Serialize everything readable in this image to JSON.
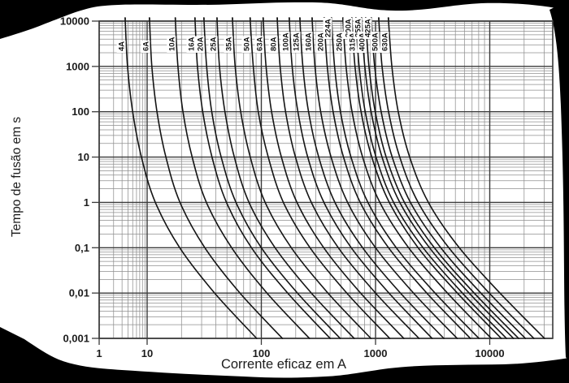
{
  "chart_data": {
    "type": "line",
    "title": "",
    "xlabel": "Corrente eficaz em A",
    "ylabel": "Tempo de fusão em s",
    "x_scale": "log",
    "y_scale": "log",
    "xlim": [
      1,
      35000
    ],
    "ylim": [
      0.001,
      10000
    ],
    "grid": "log major+minor, both axes",
    "legend_position": "labels-on-curves-top",
    "x_tick_values": [
      1,
      10,
      100,
      1000,
      10000
    ],
    "x_tick_labels": [
      "1",
      "10",
      "100",
      "1000",
      "10000"
    ],
    "y_tick_values": [
      10000,
      1000,
      100,
      10,
      1,
      0.1,
      0.01,
      0.001
    ],
    "y_tick_labels": [
      "10000",
      "1000",
      "100",
      "10",
      "1",
      "0,1",
      "0,01",
      "0,001"
    ],
    "times_s": [
      10000,
      1000,
      100,
      10,
      1,
      0.1,
      0.01,
      0.001
    ],
    "series": [
      {
        "name": "4A",
        "label_raised": false,
        "currents_A": [
          3.5,
          3.9,
          5.0,
          7.6,
          11.8,
          19.3,
          39,
          91
        ]
      },
      {
        "name": "6A",
        "label_raised": false,
        "currents_A": [
          10.5,
          11.0,
          12.2,
          14.6,
          19.4,
          32,
          65,
          153
        ]
      },
      {
        "name": "10A",
        "label_raised": false,
        "currents_A": [
          17.7,
          18.6,
          20.6,
          24.8,
          33,
          55,
          112,
          264
        ]
      },
      {
        "name": "16A",
        "label_raised": false,
        "currents_A": [
          26.3,
          27.6,
          30.7,
          37,
          49.5,
          82,
          170,
          400
        ]
      },
      {
        "name": "20A",
        "label_raised": false,
        "currents_A": [
          31.5,
          33.2,
          36.8,
          44.5,
          60,
          100,
          207,
          490
        ]
      },
      {
        "name": "25A",
        "label_raised": false,
        "currents_A": [
          41,
          43,
          48,
          58,
          78,
          132,
          274,
          650
        ]
      },
      {
        "name": "35A",
        "label_raised": false,
        "currents_A": [
          56,
          59,
          66,
          80,
          108,
          183,
          383,
          910
        ]
      },
      {
        "name": "50A",
        "label_raised": false,
        "currents_A": [
          80,
          85,
          94,
          115,
          156,
          267,
          560,
          1330
        ]
      },
      {
        "name": "63A",
        "label_raised": false,
        "currents_A": [
          104,
          110,
          123,
          150,
          205,
          352,
          740,
          1770
        ]
      },
      {
        "name": "80A",
        "label_raised": false,
        "currents_A": [
          138,
          146,
          163,
          199,
          274,
          472,
          1000,
          2400
        ]
      },
      {
        "name": "100A",
        "label_raised": false,
        "currents_A": [
          176,
          186,
          209,
          255,
          353,
          613,
          1310,
          3130
        ]
      },
      {
        "name": "125A",
        "label_raised": false,
        "currents_A": [
          218,
          231,
          259,
          318,
          441,
          770,
          1650,
          3960
        ]
      },
      {
        "name": "160A",
        "label_raised": false,
        "currents_A": [
          279,
          295,
          331,
          408,
          569,
          1000,
          2150,
          5180
        ]
      },
      {
        "name": "200A",
        "label_raised": false,
        "currents_A": [
          356,
          378,
          425,
          524,
          734,
          1300,
          2810,
          6770
        ]
      },
      {
        "name": "224A",
        "label_raised": true,
        "currents_A": [
          413,
          438,
          493,
          610,
          857,
          1520,
          3320,
          8030
        ]
      },
      {
        "name": "250A",
        "label_raised": false,
        "currents_A": [
          519,
          552,
          623,
          771,
          1090,
          1950,
          4260,
          10300
        ]
      },
      {
        "name": "300A",
        "label_raised": true,
        "currents_A": [
          622,
          661,
          747,
          927,
          1320,
          2360,
          5200,
          12600
        ]
      },
      {
        "name": "315A",
        "label_raised": false,
        "currents_A": [
          675,
          718,
          812,
          1010,
          1440,
          2610,
          5760,
          14000
        ]
      },
      {
        "name": "355A",
        "label_raised": true,
        "currents_A": [
          757,
          805,
          914,
          1140,
          1630,
          2970,
          6590,
          16100
        ]
      },
      {
        "name": "400A",
        "label_raised": false,
        "currents_A": [
          822,
          876,
          994,
          1240,
          1790,
          3270,
          7300,
          17900
        ]
      },
      {
        "name": "425A",
        "label_raised": true,
        "currents_A": [
          921,
          982,
          1120,
          1400,
          2020,
          3720,
          8350,
          20500
        ]
      },
      {
        "name": "500A",
        "label_raised": false,
        "currents_A": [
          1070,
          1140,
          1300,
          1630,
          2360,
          4380,
          9890,
          24300
        ]
      },
      {
        "name": "630A",
        "label_raised": false,
        "currents_A": [
          1300,
          1390,
          1580,
          1990,
          2900,
          5410,
          12270,
          30200
        ]
      }
    ]
  },
  "colors": {
    "background": "#ffffff",
    "curve": "#141414",
    "grid_minor": "#8f8f8f",
    "grid_major": "#3a3a3a",
    "text": "#1c1c1c",
    "edge_blobs": "#000000"
  }
}
